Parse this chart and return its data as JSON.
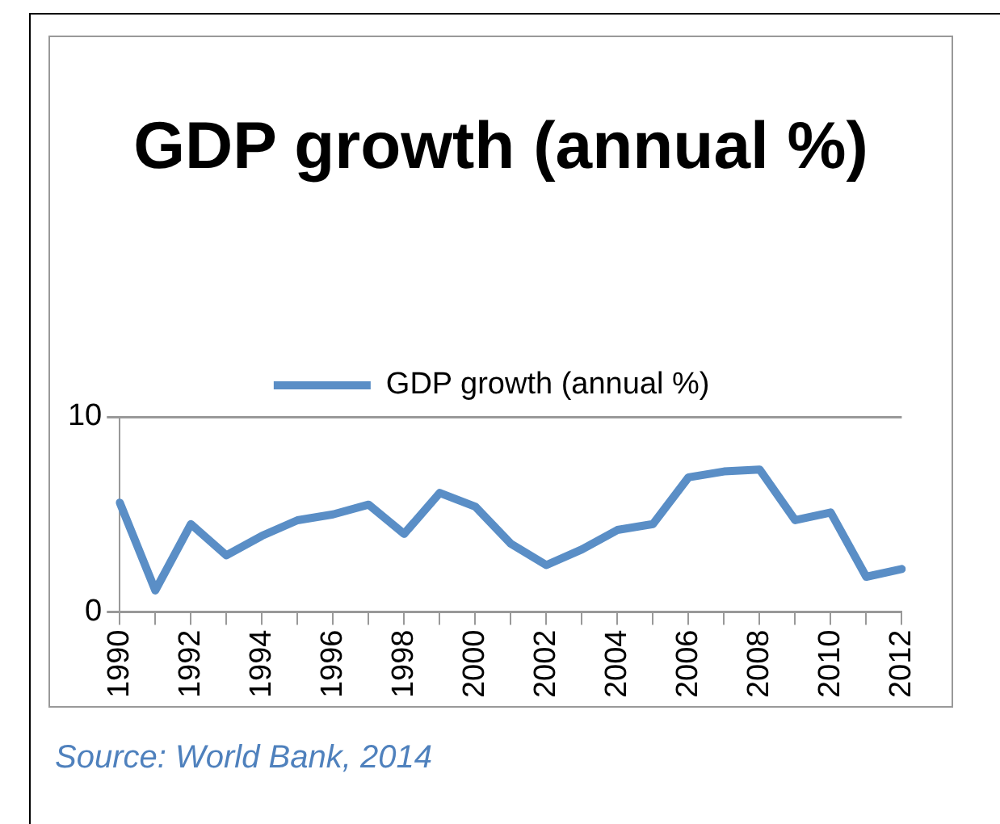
{
  "chart_data": {
    "type": "line",
    "title": "GDP growth (annual %)",
    "categories": [
      "1990",
      null,
      "1992",
      null,
      "1994",
      null,
      "1996",
      null,
      "1998",
      null,
      "2000",
      null,
      "2002",
      null,
      "2004",
      null,
      "2006",
      null,
      "2008",
      null,
      "2010",
      null,
      "2012"
    ],
    "series": [
      {
        "name": "GDP growth (annual %)",
        "color": "#5a8ec6",
        "values": [
          5.6,
          1.1,
          4.5,
          2.9,
          3.9,
          4.7,
          5.0,
          5.5,
          4.0,
          6.1,
          5.4,
          3.5,
          2.4,
          3.2,
          4.2,
          4.5,
          6.9,
          7.2,
          7.3,
          4.7,
          5.1,
          1.8,
          2.2
        ]
      }
    ],
    "ylim": [
      0,
      10
    ],
    "yticks": [
      0,
      10
    ],
    "grid": "y",
    "legend": "top",
    "annotations": [
      "Source: World Bank, 2014"
    ]
  }
}
